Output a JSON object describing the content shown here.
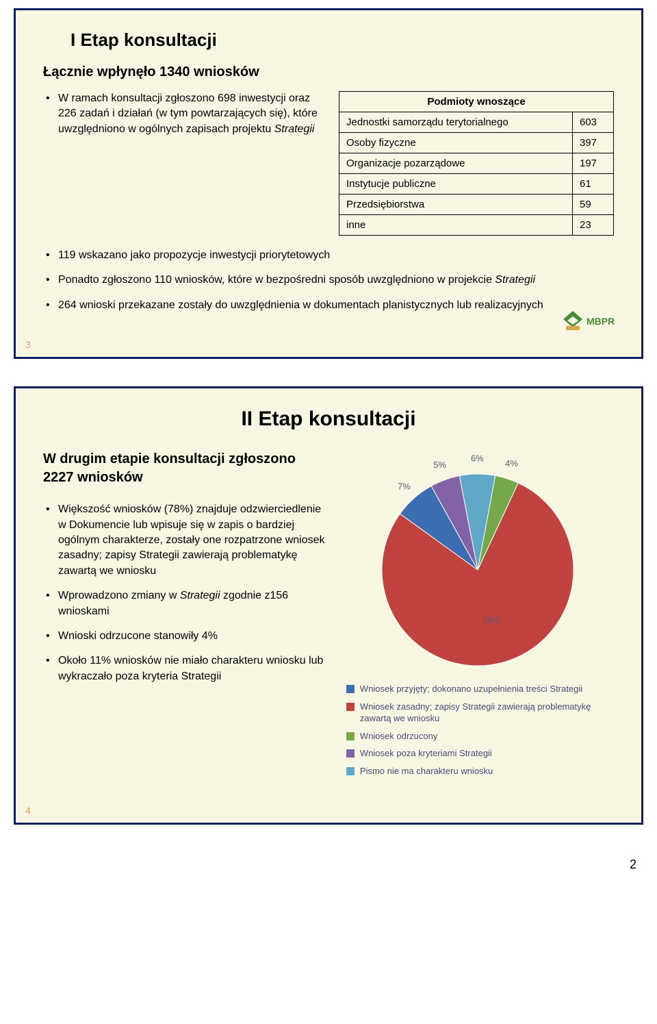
{
  "slide1": {
    "title": "I Etap konsultacji",
    "subtitle": "Łącznie wpłynęło 1340 wniosków",
    "left_bullet": "W ramach konsultacji zgłoszono 698 inwestycji oraz 226 zadań i działań (w tym powtarzających się), które uwzględniono w ogólnych zapisach projektu Strategii",
    "table_header": "Podmioty wnoszące",
    "rows": [
      {
        "label": "Jednostki samorządu terytorialnego",
        "value": "603"
      },
      {
        "label": "Osoby fizyczne",
        "value": "397"
      },
      {
        "label": "Organizacje pozarządowe",
        "value": "197"
      },
      {
        "label": "Instytucje publiczne",
        "value": "61"
      },
      {
        "label": "Przedsiębiorstwa",
        "value": "59"
      },
      {
        "label": "inne",
        "value": "23"
      }
    ],
    "lower_bullets": [
      "119 wskazano jako propozycje inwestycji priorytetowych",
      "Ponadto zgłoszono 110 wniosków, które w bezpośredni sposób uwzględniono w projekcie Strategii",
      "264 wnioski przekazane zostały do uwzględnienia w dokumentach planistycznych lub realizacyjnych"
    ],
    "page_num": "3",
    "logo_text": "MBPR"
  },
  "slide2": {
    "title": "II Etap konsultacji",
    "heading": "W drugim etapie konsultacji zgłoszono 2227 wniosków",
    "bullets": [
      "Większość wniosków (78%) znajduje odzwierciedlenie w Dokumencie lub wpisuje się w zapis o bardziej ogólnym charakterze, zostały one rozpatrzone wniosek zasadny; zapisy Strategii zawierają problematykę zawartą we wniosku",
      "Wprowadzono zmiany w Strategii zgodnie z156 wnioskami",
      "Wnioski odrzucone stanowiły 4%",
      "Około 11% wniosków nie miało charakteru wniosku lub wykraczało poza kryteria Strategii"
    ],
    "pie": {
      "type": "pie",
      "background_color": "#f7f6e2",
      "slices": [
        {
          "label": "78%",
          "value": 78,
          "color": "#c0433f"
        },
        {
          "label": "7%",
          "value": 7,
          "color": "#3c6db0"
        },
        {
          "label": "5%",
          "value": 5,
          "color": "#8263a6"
        },
        {
          "label": "6%",
          "value": 6,
          "color": "#5fa8c8"
        },
        {
          "label": "4%",
          "value": 4,
          "color": "#74a84a"
        }
      ],
      "label_color": "#5a5a7a",
      "label_fontsize": 13
    },
    "legend": [
      {
        "color": "#3c6db0",
        "text": "Wniosek przyjęty; dokonano uzupełnienia treści Strategii"
      },
      {
        "color": "#c0433f",
        "text": "Wniosek zasadny; zapisy Strategii zawierają problematykę zawartą we wniosku"
      },
      {
        "color": "#74a84a",
        "text": "Wniosek odrzucony"
      },
      {
        "color": "#8263a6",
        "text": "Wniosek poza kryteriami Strategii"
      },
      {
        "color": "#5fa8c8",
        "text": "Pismo nie ma charakteru wniosku"
      }
    ],
    "page_num": "4"
  },
  "doc_page": "2"
}
